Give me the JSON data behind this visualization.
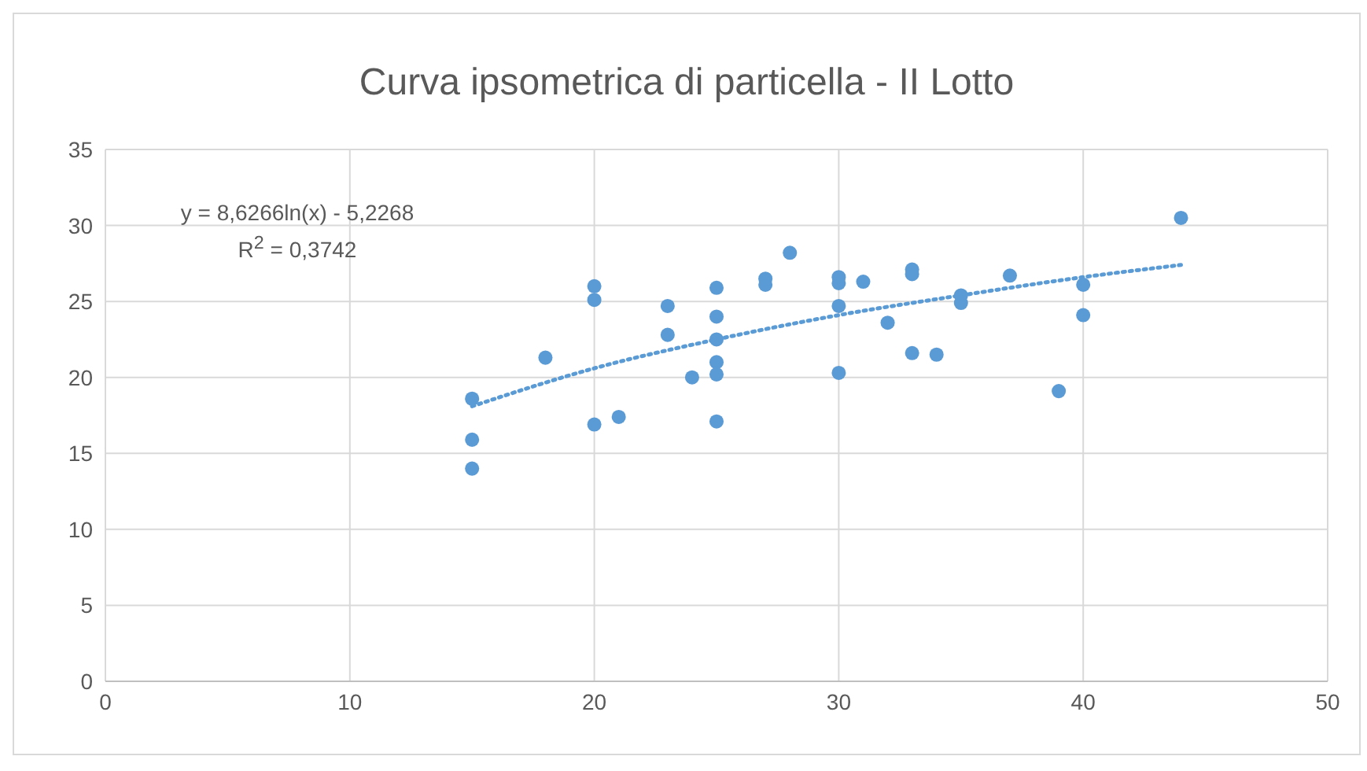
{
  "chart_data": {
    "type": "scatter",
    "title": "Curva ipsometrica di particella - II Lotto",
    "annotations": [
      "y = 8,6266ln(x) - 5,2268",
      "R$^{2}$ = 0,3742"
    ],
    "xlim": [
      0,
      50
    ],
    "xticks": [
      0,
      10,
      20,
      30,
      40,
      50
    ],
    "ylim": [
      0,
      35
    ],
    "yticks": [
      0,
      5,
      10,
      15,
      20,
      25,
      30,
      35
    ],
    "grid": true,
    "legend": false,
    "marker": "circle",
    "series": [
      {
        "color": "#5b9bd5",
        "x": [
          15,
          15,
          15,
          18,
          20,
          20,
          20,
          21,
          23,
          23,
          24,
          25,
          25,
          25,
          25,
          25,
          25,
          27,
          27,
          28,
          30,
          30,
          30,
          30,
          31,
          32,
          33,
          33,
          33,
          34,
          35,
          35,
          37,
          39,
          40,
          40,
          44
        ],
        "values": [
          18.6,
          15.9,
          14,
          21.3,
          26,
          25.1,
          16.9,
          17.4,
          24.7,
          22.8,
          20,
          25.9,
          24,
          22.5,
          21,
          20.2,
          17.1,
          26.5,
          26.1,
          28.2,
          26.6,
          26.2,
          24.7,
          20.3,
          26.3,
          23.6,
          27.1,
          26.8,
          21.6,
          21.5,
          25.4,
          24.9,
          26.7,
          19.1,
          26.1,
          24.1,
          30.5
        ]
      },
      {
        "type": "line",
        "color": "#5b9bd5",
        "line_style": "dotted",
        "marker": "none",
        "x": [
          15,
          20,
          25,
          30,
          35,
          40,
          44
        ],
        "values": [
          18.1,
          20.6,
          22.5,
          24.1,
          25.4,
          26.6,
          27.4
        ]
      }
    ]
  }
}
